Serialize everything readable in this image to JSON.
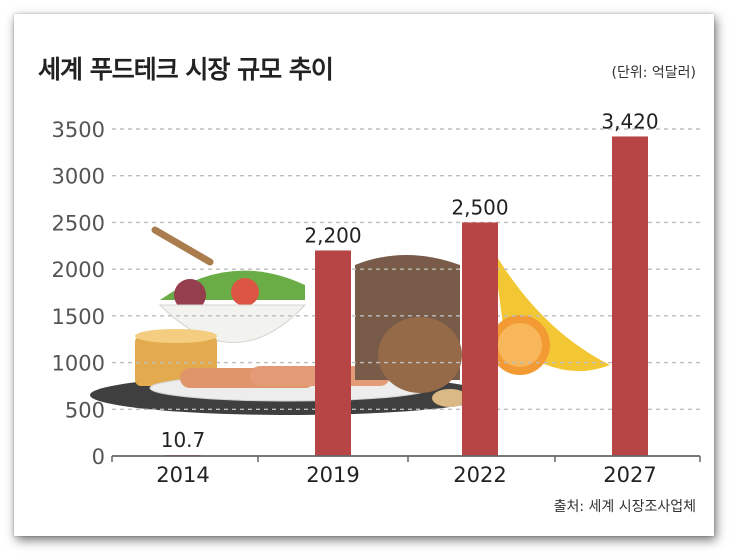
{
  "title": "세계 푸드테크 시장 규모 추이",
  "unit": "(단위: 억달러)",
  "source": "출처: 세계 시장조사업체",
  "colors": {
    "bar": "#b84545",
    "grid": "#bdbdbd",
    "axis": "#666666",
    "label": "#222222",
    "tick": "#555555"
  },
  "chart_data": {
    "type": "bar",
    "title": "세계 푸드테크 시장 규모 추이",
    "ylabel": "(단위: 억달러)",
    "xlabel": "",
    "categories": [
      "2014",
      "2019",
      "2022",
      "2027"
    ],
    "values": [
      10.7,
      2200,
      2500,
      3420
    ],
    "value_labels": [
      "10.7",
      "2,200",
      "2,500",
      "3,420"
    ],
    "yticks": [
      0,
      500,
      1000,
      1500,
      2000,
      2500,
      3000,
      3500
    ],
    "ylim": [
      0,
      3500
    ],
    "grid": true
  }
}
